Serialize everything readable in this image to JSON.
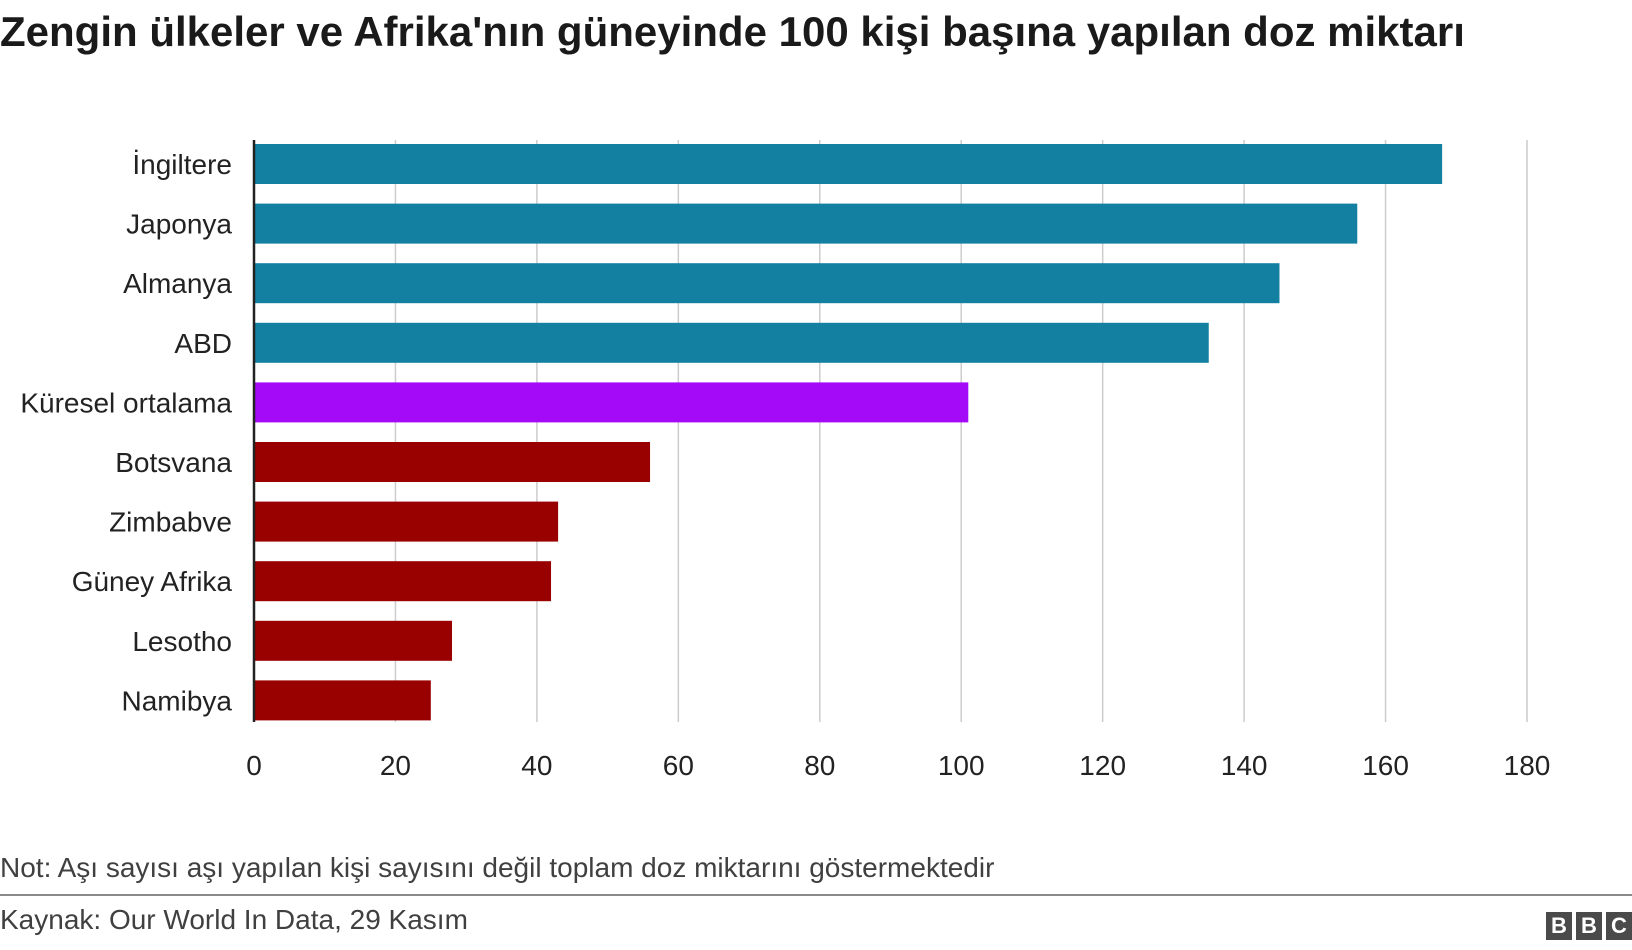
{
  "title": "Zengin ülkeler ve Afrika'nın güneyinde 100 kişi başına yapılan doz miktarı",
  "note": "Not: Aşı sayısı aşı yapılan kişi sayısını değil toplam doz miktarını göstermektedir",
  "source": "Kaynak: Our World In Data, 29 Kasım",
  "logo": {
    "letters": [
      "B",
      "B",
      "C"
    ]
  },
  "colors": {
    "rich": "#1380a1",
    "global": "#a50af8",
    "africa": "#990000",
    "grid": "#cccccc",
    "axis": "#222222"
  },
  "chart_data": {
    "type": "bar",
    "orientation": "horizontal",
    "categories": [
      "İngiltere",
      "Japonya",
      "Almanya",
      "ABD",
      "Küresel ortalama",
      "Botsvana",
      "Zimbabve",
      "Güney Afrika",
      "Lesotho",
      "Namibya"
    ],
    "values": [
      168,
      156,
      145,
      135,
      101,
      56,
      43,
      42,
      28,
      25
    ],
    "bar_groups": [
      "rich",
      "rich",
      "rich",
      "rich",
      "global",
      "africa",
      "africa",
      "africa",
      "africa",
      "africa"
    ],
    "xlim": [
      0,
      180
    ],
    "xticks": [
      0,
      20,
      40,
      60,
      80,
      100,
      120,
      140,
      160,
      180
    ],
    "grid": true,
    "legend": "none"
  }
}
